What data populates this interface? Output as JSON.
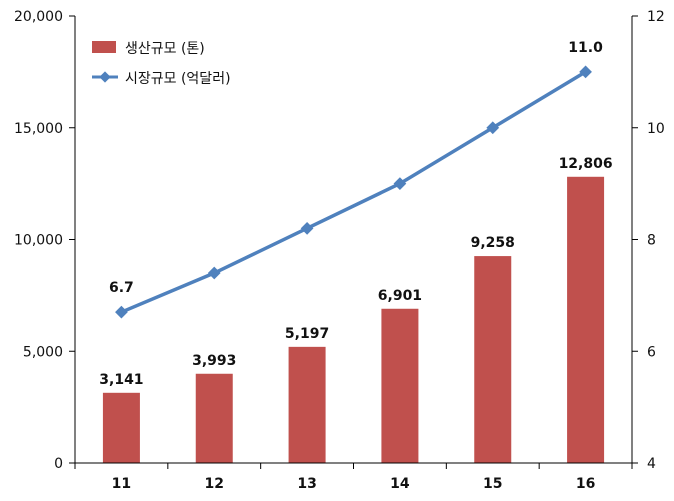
{
  "chart_data": {
    "type": "bar+line",
    "categories": [
      "11",
      "12",
      "13",
      "14",
      "15",
      "16"
    ],
    "series": [
      {
        "name": "생산규모 (톤)",
        "kind": "bar",
        "axis": "left",
        "values": [
          3141,
          3993,
          5197,
          6901,
          9258,
          12806
        ],
        "labels": [
          "3,141",
          "3,993",
          "5,197",
          "6,901",
          "9,258",
          "12,806"
        ],
        "color": "#c0504d"
      },
      {
        "name": "시장규모 (억달러)",
        "kind": "line",
        "axis": "right",
        "values": [
          6.7,
          7.4,
          8.2,
          9.0,
          10.0,
          11.0
        ],
        "labels": [
          "6.7",
          "",
          "",
          "",
          "",
          "11.0"
        ],
        "color": "#4f81bd"
      }
    ],
    "y_left": {
      "lim": [
        0,
        20000
      ],
      "ticks": [
        "0",
        "5,000",
        "10,000",
        "15,000",
        "20,000"
      ],
      "tick_values": [
        0,
        5000,
        10000,
        15000,
        20000
      ]
    },
    "y_right": {
      "lim": [
        4,
        12
      ],
      "ticks": [
        "4",
        "6",
        "8",
        "10",
        "12"
      ],
      "tick_values": [
        4,
        6,
        8,
        10,
        12
      ]
    },
    "legend_position": "top-left",
    "grid": false
  }
}
